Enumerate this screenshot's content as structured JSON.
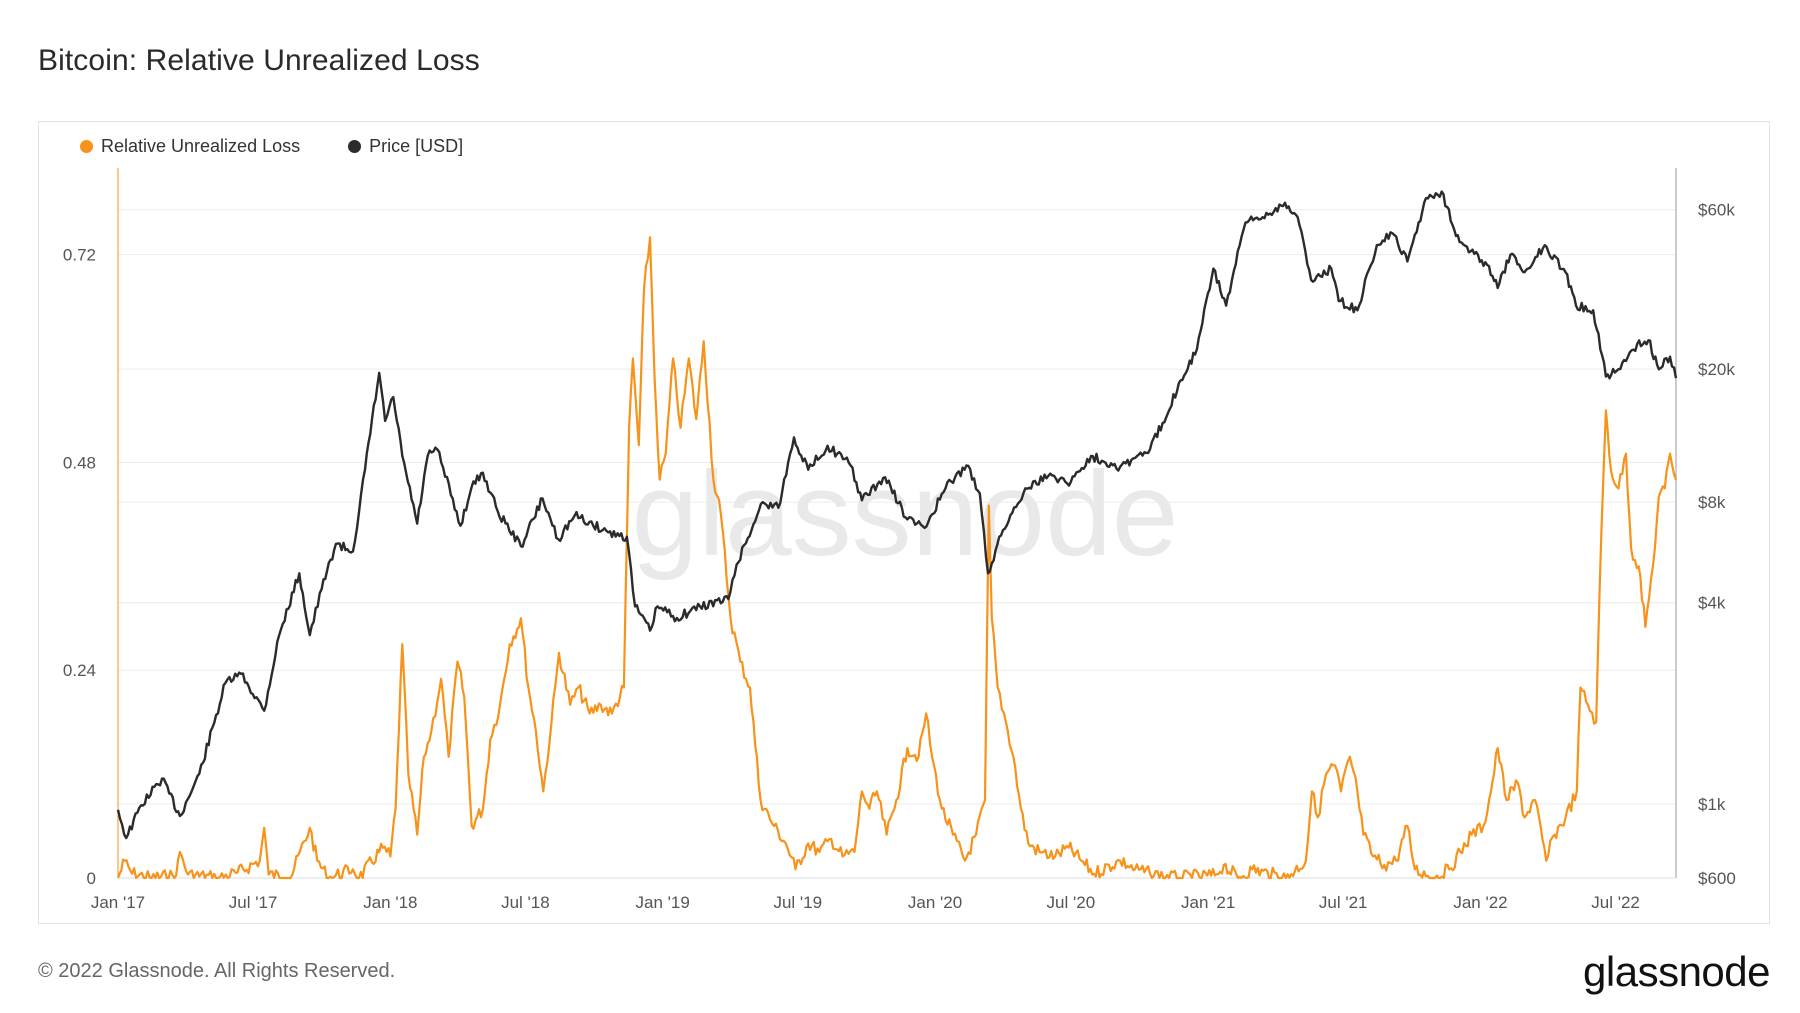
{
  "title": "Bitcoin: Relative Unrealized Loss",
  "footer": {
    "copyright": "© 2022 Glassnode. All Rights Reserved.",
    "brand": "glassnode"
  },
  "watermark": "glassnode",
  "colors": {
    "loss": "#f7931a",
    "price": "#2b2b2b",
    "grid": "#ececec",
    "axis_text": "#555555"
  },
  "chart_data": {
    "type": "line",
    "title": "Bitcoin: Relative Unrealized Loss",
    "legend_position": "top-left",
    "grid": true,
    "x_ticks": [
      "Jan '17",
      "Jul '17",
      "Jan '18",
      "Jul '18",
      "Jan '19",
      "Jul '19",
      "Jan '20",
      "Jul '20",
      "Jan '21",
      "Jul '21",
      "Jan '22",
      "Jul '22"
    ],
    "x_range": [
      "2017-01-01",
      "2022-09-20"
    ],
    "y_left": {
      "ticks": [
        "0",
        "0.24",
        "0.48",
        "0.72"
      ],
      "range": [
        0,
        0.82
      ]
    },
    "y_right": {
      "ticks": [
        "$600",
        "$1k",
        "$4k",
        "$8k",
        "$20k",
        "$60k"
      ],
      "range": [
        600,
        80000
      ],
      "scale": "log"
    },
    "series": [
      {
        "name": "Relative Unrealized Loss",
        "axis": "left",
        "points": [
          [
            "2017-01-01",
            0.0
          ],
          [
            "2017-01-10",
            0.02
          ],
          [
            "2017-01-20",
            0.005
          ],
          [
            "2017-02-15",
            0.0
          ],
          [
            "2017-03-20",
            0.003
          ],
          [
            "2017-03-25",
            0.03
          ],
          [
            "2017-04-05",
            0.004
          ],
          [
            "2017-05-15",
            0.0
          ],
          [
            "2017-06-10",
            0.006
          ],
          [
            "2017-07-10",
            0.02
          ],
          [
            "2017-07-16",
            0.058
          ],
          [
            "2017-07-22",
            0.004
          ],
          [
            "2017-08-20",
            0.0
          ],
          [
            "2017-09-15",
            0.058
          ],
          [
            "2017-09-25",
            0.02
          ],
          [
            "2017-10-10",
            0.0
          ],
          [
            "2017-11-12",
            0.01
          ],
          [
            "2017-11-20",
            0.0
          ],
          [
            "2017-12-22",
            0.035
          ],
          [
            "2018-01-01",
            0.025
          ],
          [
            "2018-01-08",
            0.08
          ],
          [
            "2018-01-17",
            0.27
          ],
          [
            "2018-01-25",
            0.12
          ],
          [
            "2018-02-06",
            0.05
          ],
          [
            "2018-02-15",
            0.14
          ],
          [
            "2018-02-25",
            0.17
          ],
          [
            "2018-03-10",
            0.23
          ],
          [
            "2018-03-20",
            0.14
          ],
          [
            "2018-04-01",
            0.25
          ],
          [
            "2018-04-10",
            0.21
          ],
          [
            "2018-04-20",
            0.06
          ],
          [
            "2018-05-05",
            0.08
          ],
          [
            "2018-05-15",
            0.16
          ],
          [
            "2018-05-28",
            0.2
          ],
          [
            "2018-06-10",
            0.27
          ],
          [
            "2018-06-25",
            0.3
          ],
          [
            "2018-07-05",
            0.22
          ],
          [
            "2018-07-15",
            0.17
          ],
          [
            "2018-07-25",
            0.1
          ],
          [
            "2018-08-05",
            0.18
          ],
          [
            "2018-08-15",
            0.26
          ],
          [
            "2018-08-30",
            0.2
          ],
          [
            "2018-09-10",
            0.22
          ],
          [
            "2018-09-25",
            0.19
          ],
          [
            "2018-10-10",
            0.2
          ],
          [
            "2018-10-25",
            0.19
          ],
          [
            "2018-11-10",
            0.22
          ],
          [
            "2018-11-17",
            0.52
          ],
          [
            "2018-11-22",
            0.6
          ],
          [
            "2018-11-30",
            0.5
          ],
          [
            "2018-12-07",
            0.68
          ],
          [
            "2018-12-15",
            0.74
          ],
          [
            "2018-12-21",
            0.58
          ],
          [
            "2018-12-28",
            0.46
          ],
          [
            "2019-01-05",
            0.49
          ],
          [
            "2019-01-15",
            0.6
          ],
          [
            "2019-01-25",
            0.52
          ],
          [
            "2019-02-05",
            0.6
          ],
          [
            "2019-02-15",
            0.53
          ],
          [
            "2019-02-25",
            0.62
          ],
          [
            "2019-03-10",
            0.46
          ],
          [
            "2019-03-20",
            0.42
          ],
          [
            "2019-04-02",
            0.3
          ],
          [
            "2019-04-15",
            0.25
          ],
          [
            "2019-04-28",
            0.22
          ],
          [
            "2019-05-12",
            0.09
          ],
          [
            "2019-05-30",
            0.06
          ],
          [
            "2019-06-15",
            0.04
          ],
          [
            "2019-06-28",
            0.01
          ],
          [
            "2019-07-15",
            0.04
          ],
          [
            "2019-07-30",
            0.03
          ],
          [
            "2019-08-15",
            0.045
          ],
          [
            "2019-08-30",
            0.025
          ],
          [
            "2019-09-15",
            0.03
          ],
          [
            "2019-09-25",
            0.1
          ],
          [
            "2019-10-05",
            0.08
          ],
          [
            "2019-10-15",
            0.1
          ],
          [
            "2019-10-28",
            0.05
          ],
          [
            "2019-11-10",
            0.09
          ],
          [
            "2019-11-25",
            0.15
          ],
          [
            "2019-12-10",
            0.14
          ],
          [
            "2019-12-20",
            0.19
          ],
          [
            "2019-12-28",
            0.14
          ],
          [
            "2020-01-10",
            0.08
          ],
          [
            "2020-01-25",
            0.05
          ],
          [
            "2020-02-10",
            0.02
          ],
          [
            "2020-02-25",
            0.05
          ],
          [
            "2020-03-08",
            0.09
          ],
          [
            "2020-03-13",
            0.43
          ],
          [
            "2020-03-17",
            0.3
          ],
          [
            "2020-03-25",
            0.22
          ],
          [
            "2020-04-05",
            0.18
          ],
          [
            "2020-04-15",
            0.14
          ],
          [
            "2020-04-25",
            0.08
          ],
          [
            "2020-05-05",
            0.04
          ],
          [
            "2020-05-20",
            0.03
          ],
          [
            "2020-06-10",
            0.025
          ],
          [
            "2020-06-28",
            0.035
          ],
          [
            "2020-07-15",
            0.02
          ],
          [
            "2020-08-01",
            0.005
          ],
          [
            "2020-09-05",
            0.02
          ],
          [
            "2020-09-25",
            0.01
          ],
          [
            "2020-10-15",
            0.005
          ],
          [
            "2020-11-20",
            0.0
          ],
          [
            "2021-01-10",
            0.003
          ],
          [
            "2021-01-22",
            0.015
          ],
          [
            "2021-02-10",
            0.0
          ],
          [
            "2021-03-01",
            0.01
          ],
          [
            "2021-04-15",
            0.0
          ],
          [
            "2021-05-12",
            0.02
          ],
          [
            "2021-05-20",
            0.1
          ],
          [
            "2021-05-28",
            0.07
          ],
          [
            "2021-06-08",
            0.12
          ],
          [
            "2021-06-20",
            0.13
          ],
          [
            "2021-06-28",
            0.1
          ],
          [
            "2021-07-10",
            0.14
          ],
          [
            "2021-07-20",
            0.1
          ],
          [
            "2021-07-28",
            0.05
          ],
          [
            "2021-08-10",
            0.025
          ],
          [
            "2021-08-25",
            0.015
          ],
          [
            "2021-09-10",
            0.02
          ],
          [
            "2021-09-25",
            0.06
          ],
          [
            "2021-10-05",
            0.01
          ],
          [
            "2021-11-01",
            0.0
          ],
          [
            "2021-11-20",
            0.01
          ],
          [
            "2021-12-05",
            0.03
          ],
          [
            "2021-12-20",
            0.05
          ],
          [
            "2022-01-05",
            0.06
          ],
          [
            "2022-01-15",
            0.1
          ],
          [
            "2022-01-24",
            0.15
          ],
          [
            "2022-02-05",
            0.09
          ],
          [
            "2022-02-20",
            0.11
          ],
          [
            "2022-03-01",
            0.07
          ],
          [
            "2022-03-15",
            0.09
          ],
          [
            "2022-03-30",
            0.02
          ],
          [
            "2022-04-10",
            0.05
          ],
          [
            "2022-04-25",
            0.07
          ],
          [
            "2022-05-10",
            0.1
          ],
          [
            "2022-05-15",
            0.22
          ],
          [
            "2022-05-25",
            0.2
          ],
          [
            "2022-06-05",
            0.18
          ],
          [
            "2022-06-12",
            0.4
          ],
          [
            "2022-06-18",
            0.54
          ],
          [
            "2022-06-25",
            0.47
          ],
          [
            "2022-07-05",
            0.45
          ],
          [
            "2022-07-15",
            0.49
          ],
          [
            "2022-07-22",
            0.38
          ],
          [
            "2022-08-01",
            0.36
          ],
          [
            "2022-08-10",
            0.29
          ],
          [
            "2022-08-20",
            0.36
          ],
          [
            "2022-08-28",
            0.44
          ],
          [
            "2022-09-05",
            0.45
          ],
          [
            "2022-09-12",
            0.49
          ],
          [
            "2022-09-20",
            0.46
          ]
        ]
      },
      {
        "name": "Price [USD]",
        "axis": "right",
        "points": [
          [
            "2017-01-01",
            960
          ],
          [
            "2017-01-12",
            790
          ],
          [
            "2017-02-01",
            990
          ],
          [
            "2017-03-01",
            1190
          ],
          [
            "2017-03-25",
            920
          ],
          [
            "2017-04-20",
            1230
          ],
          [
            "2017-05-10",
            1750
          ],
          [
            "2017-05-25",
            2300
          ],
          [
            "2017-06-15",
            2450
          ],
          [
            "2017-07-16",
            1900
          ],
          [
            "2017-08-05",
            3200
          ],
          [
            "2017-09-01",
            4900
          ],
          [
            "2017-09-15",
            3200
          ],
          [
            "2017-10-01",
            4400
          ],
          [
            "2017-10-20",
            6000
          ],
          [
            "2017-11-12",
            5700
          ],
          [
            "2017-11-28",
            10000
          ],
          [
            "2017-12-17",
            19500
          ],
          [
            "2017-12-25",
            14000
          ],
          [
            "2018-01-05",
            16500
          ],
          [
            "2018-01-17",
            11000
          ],
          [
            "2018-02-06",
            6900
          ],
          [
            "2018-02-20",
            11000
          ],
          [
            "2018-03-05",
            11500
          ],
          [
            "2018-04-05",
            6800
          ],
          [
            "2018-04-20",
            8900
          ],
          [
            "2018-05-05",
            9800
          ],
          [
            "2018-05-25",
            7500
          ],
          [
            "2018-06-25",
            5900
          ],
          [
            "2018-07-24",
            8200
          ],
          [
            "2018-08-14",
            6200
          ],
          [
            "2018-09-05",
            7300
          ],
          [
            "2018-10-20",
            6500
          ],
          [
            "2018-11-14",
            6300
          ],
          [
            "2018-11-25",
            3900
          ],
          [
            "2018-12-15",
            3300
          ],
          [
            "2018-12-25",
            3900
          ],
          [
            "2019-01-20",
            3600
          ],
          [
            "2019-02-20",
            3900
          ],
          [
            "2019-03-30",
            4100
          ],
          [
            "2019-04-10",
            5200
          ],
          [
            "2019-05-15",
            8000
          ],
          [
            "2019-06-05",
            7700
          ],
          [
            "2019-06-26",
            12500
          ],
          [
            "2019-07-15",
            10000
          ],
          [
            "2019-08-10",
            11800
          ],
          [
            "2019-09-10",
            10300
          ],
          [
            "2019-09-25",
            8100
          ],
          [
            "2019-10-26",
            9500
          ],
          [
            "2019-11-25",
            7100
          ],
          [
            "2019-12-18",
            6700
          ],
          [
            "2020-01-15",
            8800
          ],
          [
            "2020-02-12",
            10300
          ],
          [
            "2020-03-01",
            8500
          ],
          [
            "2020-03-12",
            4900
          ],
          [
            "2020-04-01",
            6600
          ],
          [
            "2020-05-01",
            8800
          ],
          [
            "2020-06-01",
            9600
          ],
          [
            "2020-07-01",
            9200
          ],
          [
            "2020-07-28",
            11000
          ],
          [
            "2020-09-05",
            10200
          ],
          [
            "2020-10-15",
            11500
          ],
          [
            "2020-11-01",
            13800
          ],
          [
            "2020-11-25",
            18500
          ],
          [
            "2020-12-17",
            23000
          ],
          [
            "2021-01-08",
            40000
          ],
          [
            "2021-01-25",
            31000
          ],
          [
            "2021-02-20",
            55000
          ],
          [
            "2021-03-15",
            57000
          ],
          [
            "2021-04-14",
            63000
          ],
          [
            "2021-05-01",
            57000
          ],
          [
            "2021-05-19",
            37000
          ],
          [
            "2021-06-15",
            40000
          ],
          [
            "2021-06-25",
            32000
          ],
          [
            "2021-07-20",
            30000
          ],
          [
            "2021-08-15",
            47000
          ],
          [
            "2021-09-05",
            51000
          ],
          [
            "2021-09-25",
            42000
          ],
          [
            "2021-10-20",
            65000
          ],
          [
            "2021-11-10",
            68000
          ],
          [
            "2021-12-04",
            48000
          ],
          [
            "2022-01-10",
            41000
          ],
          [
            "2022-01-24",
            35000
          ],
          [
            "2022-02-10",
            44000
          ],
          [
            "2022-03-01",
            39000
          ],
          [
            "2022-03-28",
            47000
          ],
          [
            "2022-04-25",
            39000
          ],
          [
            "2022-05-09",
            31000
          ],
          [
            "2022-06-01",
            30000
          ],
          [
            "2022-06-13",
            22000
          ],
          [
            "2022-06-18",
            19000
          ],
          [
            "2022-07-05",
            20000
          ],
          [
            "2022-07-30",
            23800
          ],
          [
            "2022-08-14",
            24400
          ],
          [
            "2022-08-28",
            20000
          ],
          [
            "2022-09-12",
            21800
          ],
          [
            "2022-09-20",
            18800
          ]
        ]
      }
    ]
  }
}
